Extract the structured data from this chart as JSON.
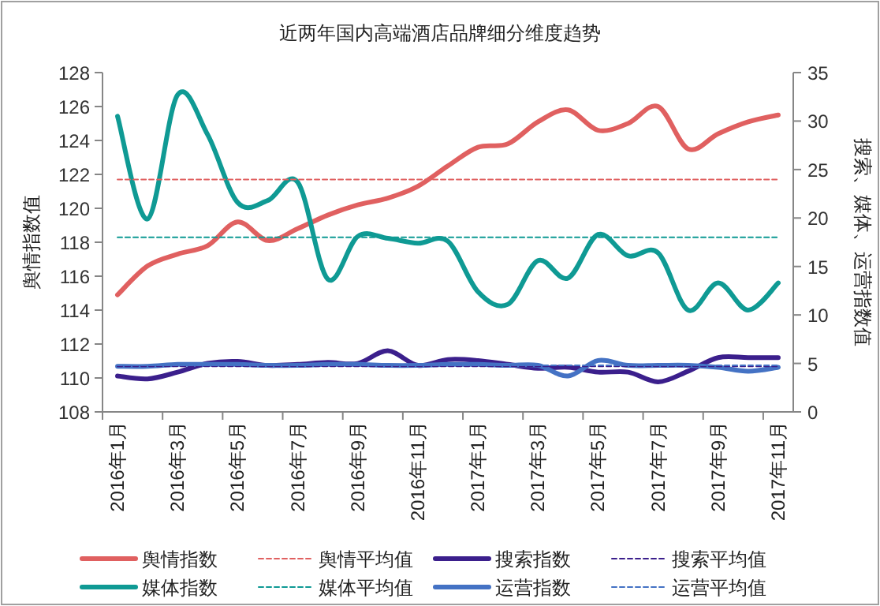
{
  "chart_data": {
    "type": "line",
    "title": "近两年国内高端酒店品牌细分维度趋势",
    "ylabel": "舆情指数值",
    "y2label": "搜索、媒体、运营指数值",
    "categories": [
      "2016年1月",
      null,
      "2016年3月",
      null,
      "2016年5月",
      null,
      "2016年7月",
      null,
      "2016年9月",
      null,
      "2016年11月",
      null,
      "2017年1月",
      null,
      "2017年3月",
      null,
      "2017年5月",
      null,
      "2017年7月",
      null,
      "2017年9月",
      null,
      "2017年11月"
    ],
    "ylim": [
      108,
      128
    ],
    "yticks": [
      108,
      110,
      112,
      114,
      116,
      118,
      120,
      122,
      124,
      126,
      128
    ],
    "y2lim": [
      0,
      35
    ],
    "y2ticks": [
      0,
      5,
      10,
      15,
      20,
      25,
      30,
      35
    ],
    "legend": "bottom",
    "series": [
      {
        "name": "舆情指数",
        "color": "#e06060",
        "values": [
          114.9,
          116.6,
          117.3,
          117.8,
          119.2,
          118.1,
          118.8,
          119.6,
          120.2,
          120.6,
          121.3,
          122.5,
          123.6,
          123.8,
          125.1,
          125.8,
          124.6,
          125.0,
          126.0,
          123.5,
          124.4,
          125.1,
          125.5
        ]
      },
      {
        "name": "舆情平均值",
        "color": "#e06060",
        "line_style": "dashed",
        "values": [
          121.7,
          121.7,
          121.7,
          121.7,
          121.7,
          121.7,
          121.7,
          121.7,
          121.7,
          121.7,
          121.7,
          121.7,
          121.7,
          121.7,
          121.7,
          121.7,
          121.7,
          121.7,
          121.7,
          121.7,
          121.7,
          121.7,
          121.7
        ]
      },
      {
        "name": "搜索指数",
        "color": "#3b1f8c",
        "axis": "y2",
        "values": [
          3.7,
          3.4,
          4.1,
          5.0,
          5.2,
          4.8,
          4.9,
          5.1,
          5.0,
          6.3,
          4.8,
          5.4,
          5.3,
          4.9,
          4.5,
          4.6,
          4.1,
          4.1,
          3.1,
          4.2,
          5.6,
          5.6,
          5.6
        ]
      },
      {
        "name": "搜索平均值",
        "color": "#3b1f8c",
        "axis": "y2",
        "line_style": "dashed",
        "values": [
          4.7,
          4.7,
          4.7,
          4.7,
          4.7,
          4.7,
          4.7,
          4.7,
          4.7,
          4.7,
          4.7,
          4.7,
          4.7,
          4.7,
          4.7,
          4.7,
          4.7,
          4.7,
          4.7,
          4.7,
          4.7,
          4.7,
          4.7
        ]
      },
      {
        "name": "媒体指数",
        "color": "#0f9a94",
        "axis": "y2",
        "values": [
          30.5,
          19.9,
          32.7,
          28.6,
          21.6,
          21.8,
          23.7,
          13.7,
          18.1,
          17.9,
          17.4,
          17.6,
          12.4,
          11.1,
          15.6,
          13.8,
          18.3,
          16.1,
          16.4,
          10.5,
          13.3,
          10.5,
          13.3
        ]
      },
      {
        "name": "媒体平均值",
        "color": "#0f9a94",
        "axis": "y2",
        "line_style": "dashed",
        "values": [
          18.0,
          18.0,
          18.0,
          18.0,
          18.0,
          18.0,
          18.0,
          18.0,
          18.0,
          18.0,
          18.0,
          18.0,
          18.0,
          18.0,
          18.0,
          18.0,
          18.0,
          18.0,
          18.0,
          18.0,
          18.0,
          18.0,
          18.0
        ]
      },
      {
        "name": "运营指数",
        "color": "#4472c4",
        "axis": "y2",
        "values": [
          4.7,
          4.7,
          4.9,
          4.9,
          4.9,
          4.8,
          4.8,
          4.9,
          4.9,
          4.8,
          4.8,
          4.9,
          4.9,
          4.8,
          4.8,
          3.7,
          5.3,
          4.8,
          4.8,
          4.8,
          4.6,
          4.2,
          4.6
        ]
      },
      {
        "name": "运营平均值",
        "color": "#4472c4",
        "axis": "y2",
        "line_style": "dashed",
        "values": [
          4.8,
          4.8,
          4.8,
          4.8,
          4.8,
          4.8,
          4.8,
          4.8,
          4.8,
          4.8,
          4.8,
          4.8,
          4.8,
          4.8,
          4.8,
          4.8,
          4.8,
          4.8,
          4.8,
          4.8,
          4.8,
          4.8,
          4.8
        ]
      }
    ]
  }
}
